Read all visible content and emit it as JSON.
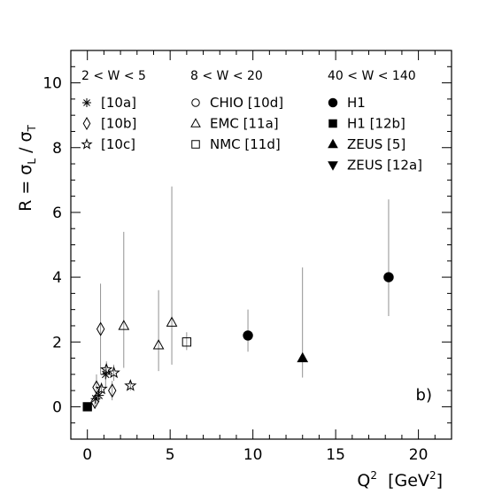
{
  "chart_data": {
    "type": "scatter",
    "panel_label": "b)",
    "xlabel": {
      "base": "Q",
      "sup": "2",
      "unit_pre": "  [GeV",
      "unit_sup": "2",
      "unit_post": "]"
    },
    "ylabel": {
      "prefix": "R = σ",
      "sub1": "L",
      "mid": " / σ",
      "sub2": "T"
    },
    "xlim": [
      -1,
      22
    ],
    "ylim": [
      -1,
      11
    ],
    "x_ticks": [
      "0",
      "5",
      "10",
      "15",
      "20"
    ],
    "y_ticks": [
      "0",
      "2",
      "4",
      "6",
      "8",
      "10"
    ],
    "grid": false,
    "legend_groups": [
      {
        "header": "2 < W < 5",
        "entries": [
          {
            "symbol": "asterisk",
            "label": "[10a]"
          },
          {
            "symbol": "diamond",
            "label": "[10b]"
          },
          {
            "symbol": "star",
            "label": "[10c]"
          }
        ]
      },
      {
        "header": "8 < W < 20",
        "entries": [
          {
            "symbol": "circle-open",
            "label": "CHIO [10d]"
          },
          {
            "symbol": "triangle-open",
            "label": "EMC [11a]"
          },
          {
            "symbol": "square-open",
            "label": "NMC [11d]"
          }
        ]
      },
      {
        "header": "40 < W < 140",
        "entries": [
          {
            "symbol": "circle-filled",
            "label": "H1"
          },
          {
            "symbol": "square-filled",
            "label": "H1 [12b]"
          },
          {
            "symbol": "triangle-filled",
            "label": "ZEUS [5]"
          },
          {
            "symbol": "triangle-down-filled",
            "label": "ZEUS [12a]"
          }
        ]
      }
    ],
    "series": [
      {
        "name": "[10a]",
        "symbol": "asterisk",
        "points": [
          {
            "x": 0.5,
            "y": 0.25,
            "ylo": 0.1,
            "yhi": 0.4
          },
          {
            "x": 0.7,
            "y": 0.35,
            "ylo": 0.15,
            "yhi": 0.55
          },
          {
            "x": 1.1,
            "y": 1.0,
            "ylo": 0.6,
            "yhi": 1.3
          }
        ]
      },
      {
        "name": "[10b]",
        "symbol": "diamond",
        "points": [
          {
            "x": 0.45,
            "y": 0.15,
            "ylo": 0.0,
            "yhi": 0.3
          },
          {
            "x": 0.55,
            "y": 0.6,
            "ylo": 0.2,
            "yhi": 1.0
          },
          {
            "x": 0.8,
            "y": 2.4,
            "ylo": 1.0,
            "yhi": 3.8
          },
          {
            "x": 1.5,
            "y": 0.5,
            "ylo": 0.2,
            "yhi": 0.8
          }
        ]
      },
      {
        "name": "[10c]",
        "symbol": "star",
        "points": [
          {
            "x": 0.85,
            "y": 0.55,
            "ylo": 0.4,
            "yhi": 0.7
          },
          {
            "x": 1.15,
            "y": 1.15,
            "ylo": 0.9,
            "yhi": 1.4
          },
          {
            "x": 1.6,
            "y": 1.05,
            "ylo": 0.8,
            "yhi": 1.3
          },
          {
            "x": 2.6,
            "y": 0.65,
            "ylo": 0.5,
            "yhi": 0.8
          }
        ]
      },
      {
        "name": "EMC [11a]",
        "symbol": "triangle-open",
        "points": [
          {
            "x": 2.2,
            "y": 2.5,
            "ylo": 1.2,
            "yhi": 5.4
          },
          {
            "x": 4.3,
            "y": 1.9,
            "ylo": 1.1,
            "yhi": 3.6
          },
          {
            "x": 5.1,
            "y": 2.6,
            "ylo": 1.3,
            "yhi": 6.8
          }
        ]
      },
      {
        "name": "NMC [11d]",
        "symbol": "square-open",
        "points": [
          {
            "x": 6.0,
            "y": 2.0,
            "ylo": 1.75,
            "yhi": 2.3
          }
        ]
      },
      {
        "name": "H1",
        "symbol": "circle-filled",
        "points": [
          {
            "x": 9.7,
            "y": 2.2,
            "ylo": 1.7,
            "yhi": 3.0
          },
          {
            "x": 18.2,
            "y": 4.0,
            "ylo": 2.8,
            "yhi": 6.4
          }
        ]
      },
      {
        "name": "H1 [12b]",
        "symbol": "square-filled",
        "points": [
          {
            "x": 0.0,
            "y": 0.0,
            "ylo": -0.1,
            "yhi": 0.1
          }
        ]
      },
      {
        "name": "ZEUS [5]",
        "symbol": "triangle-filled",
        "points": [
          {
            "x": 13.0,
            "y": 1.5,
            "ylo": 0.9,
            "yhi": 4.3
          }
        ]
      }
    ]
  }
}
